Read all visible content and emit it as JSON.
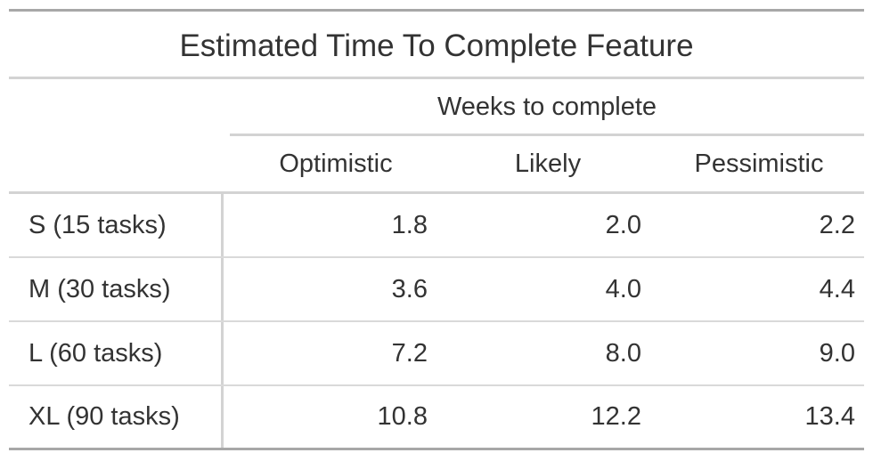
{
  "chart_data": {
    "type": "table",
    "title": "Estimated Time To Complete Feature",
    "spanner": "Weeks to complete",
    "columns": [
      "Optimistic",
      "Likely",
      "Pessimistic"
    ],
    "rows": [
      {
        "label": "S (15 tasks)",
        "values": [
          "1.8",
          "2.0",
          "2.2"
        ]
      },
      {
        "label": "M (30 tasks)",
        "values": [
          "3.6",
          "4.0",
          "4.4"
        ]
      },
      {
        "label": "L (60 tasks)",
        "values": [
          "7.2",
          "8.0",
          "9.0"
        ]
      },
      {
        "label": "XL (90 tasks)",
        "values": [
          "10.8",
          "12.2",
          "13.4"
        ]
      }
    ]
  },
  "colors": {
    "text": "#333333",
    "heavy_rule": "#a8a8a8",
    "light_rule": "#d3d3d3"
  }
}
